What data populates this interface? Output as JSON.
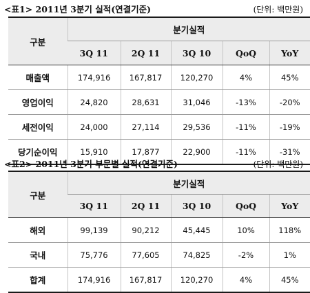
{
  "table1": {
    "title": "<표1> 2011년 3분기 실적(연결기준)",
    "unit": "(단위: 백만원)",
    "group_header": "구분",
    "span_header": "분기실적",
    "columns": [
      "3Q 11",
      "2Q 11",
      "3Q 10",
      "QoQ",
      "YoY"
    ],
    "rows": [
      {
        "label": "매출액",
        "values": [
          "174,916",
          "167,817",
          "120,270",
          "4%",
          "45%"
        ]
      },
      {
        "label": "영업이익",
        "values": [
          "24,820",
          "28,631",
          "31,046",
          "-13%",
          "-20%"
        ]
      },
      {
        "label": "세전이익",
        "values": [
          "24,000",
          "27,114",
          "29,536",
          "-11%",
          "-19%"
        ]
      },
      {
        "label": "당기순이익",
        "values": [
          "15,910",
          "17,877",
          "22,900",
          "-11%",
          "-31%"
        ]
      }
    ]
  },
  "table2": {
    "title": "<표2> 2011년 3분기 부문별 실적(연결기준)",
    "unit": "(단위: 백만원)",
    "group_header": "구분",
    "span_header": "분기실적",
    "columns": [
      "3Q 11",
      "2Q 11",
      "3Q 10",
      "QoQ",
      "YoY"
    ],
    "rows": [
      {
        "label": "해외",
        "values": [
          "99,139",
          "90,212",
          "45,445",
          "10%",
          "118%"
        ]
      },
      {
        "label": "국내",
        "values": [
          "75,776",
          "77,605",
          "74,825",
          "-2%",
          "1%"
        ]
      },
      {
        "label": "합계",
        "values": [
          "174,916",
          "167,817",
          "120,270",
          "4%",
          "45%"
        ]
      }
    ]
  }
}
